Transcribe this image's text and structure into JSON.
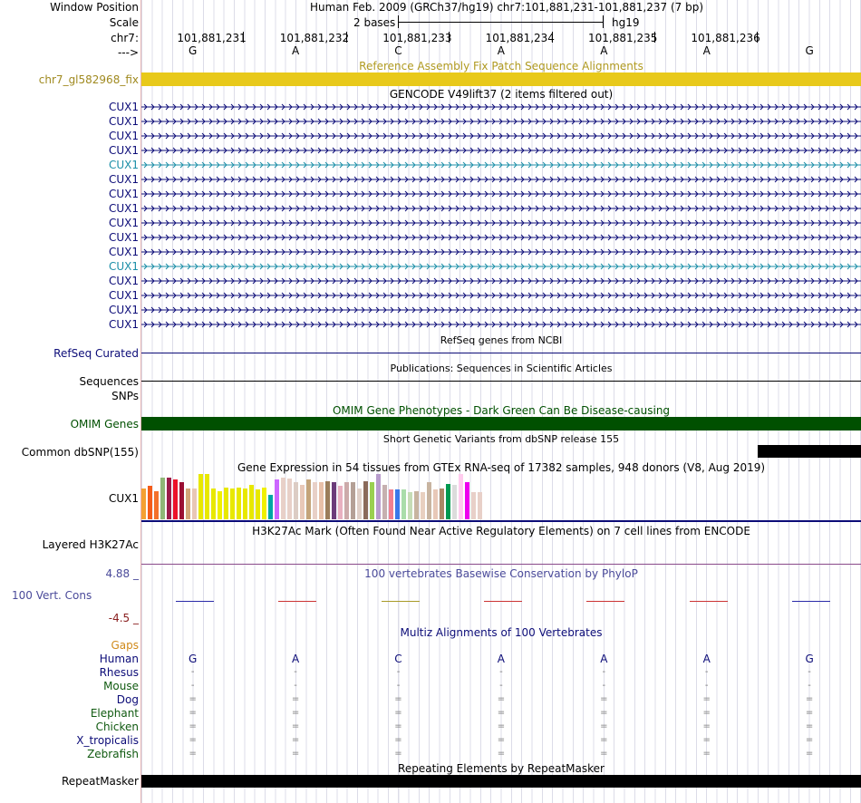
{
  "header": {
    "window_position_label": "Window Position",
    "window_position_text": "Human Feb. 2009 (GRCh37/hg19)   chr7:101,881,231-101,881,237 (7 bp)",
    "scale_label": "Scale",
    "scale_bar_text": "2 bases",
    "scale_assembly": "hg19",
    "chrom_label": "chr7:",
    "positions": [
      "101,881,231",
      "101,881,232",
      "101,881,233",
      "101,881,234",
      "101,881,235",
      "101,881,236"
    ],
    "strand_label": "--->",
    "bases": [
      "G",
      "A",
      "C",
      "A",
      "A",
      "A",
      "G"
    ]
  },
  "fix_track": {
    "title": "Reference Assembly Fix Patch Sequence Alignments",
    "label": "chr7_gl582968_fix",
    "color": "#e8c91a"
  },
  "gencode": {
    "title": "GENCODE V49lift37 (2 items filtered out)",
    "genes": [
      "CUX1",
      "CUX1",
      "CUX1",
      "CUX1",
      "CUX1",
      "CUX1",
      "CUX1",
      "CUX1",
      "CUX1",
      "CUX1",
      "CUX1",
      "CUX1",
      "CUX1",
      "CUX1",
      "CUX1",
      "CUX1"
    ],
    "gene_color": "#0c0c78",
    "alt_color": "#1c8fa8",
    "alt_rows": [
      4,
      11
    ]
  },
  "refseq": {
    "title": "RefSeq genes from NCBI",
    "label": "RefSeq Curated"
  },
  "publications": {
    "title": "Publications: Sequences in Scientific Articles",
    "label": "Sequences"
  },
  "snps_label": "SNPs",
  "omim": {
    "title": "OMIM Gene Phenotypes - Dark Green Can Be Disease-causing",
    "label": "OMIM Genes",
    "color": "#005000"
  },
  "dbsnp": {
    "title": "Short Genetic Variants from dbSNP release 155",
    "label": "Common dbSNP(155)"
  },
  "gtex": {
    "title": "Gene Expression in 54 tissues from GTEx RNA-seq of 17382 samples, 948 donors (V8, Aug 2019)",
    "label": "CUX1",
    "values": [
      0.5,
      0.55,
      0.45,
      0.68,
      0.68,
      0.64,
      0.6,
      0.5,
      0.5,
      0.74,
      0.74,
      0.5,
      0.46,
      0.52,
      0.5,
      0.52,
      0.5,
      0.56,
      0.48,
      0.52,
      0.4,
      0.64,
      0.68,
      0.66,
      0.6,
      0.56,
      0.64,
      0.6,
      0.6,
      0.62,
      0.6,
      0.54,
      0.6,
      0.6,
      0.5,
      0.62,
      0.6,
      0.74,
      0.56,
      0.48,
      0.48,
      0.48,
      0.44,
      0.46,
      0.44,
      0.6,
      0.48,
      0.5,
      0.58,
      0.56,
      0.74,
      0.6,
      0.44,
      0.44
    ],
    "colors": [
      "#f4a032",
      "#f45c1a",
      "#f4702a",
      "#8fb777",
      "#9b1c49",
      "#ec122a",
      "#9a0f33",
      "#d2a679",
      "#e8c7b6",
      "#e8e800",
      "#e8e800",
      "#e8e800",
      "#f0f000",
      "#e8e800",
      "#e8e800",
      "#e8e800",
      "#e8e800",
      "#e8e800",
      "#e8e800",
      "#f0f000",
      "#00a6a6",
      "#cc66ff",
      "#e8d0c8",
      "#e8d0c8",
      "#dcccc4",
      "#e8c8b8",
      "#c4a47a",
      "#e8d0c8",
      "#e8c0a8",
      "#9b7d5a",
      "#6b3b7a",
      "#e8b0c0",
      "#ccaaaa",
      "#b4a096",
      "#e0d0c8",
      "#8a6a5a",
      "#9ad050",
      "#b89ccc",
      "#c6b0b0",
      "#f08090",
      "#3a78e8",
      "#aaddaa",
      "#c6dcb6",
      "#c8b4a0",
      "#e8d0c0",
      "#c8b4a0",
      "#e8c8b8",
      "#aa8866",
      "#009950",
      "#dcdcdc",
      "#ffccee",
      "#ee00ee",
      "#e8d0c8",
      "#e8d0c8"
    ]
  },
  "h3k27ac": {
    "title": "H3K27Ac Mark (Often Found Near Active Regulatory Elements) on 7 cell lines from ENCODE",
    "label": "Layered H3K27Ac"
  },
  "conservation": {
    "title": "100 vertebrates Basewise Conservation by PhyloP",
    "label": "100 Vert. Cons",
    "max_label": "4.88 _",
    "min_label": "-4.5 _",
    "score_colors": [
      "#2a2aa8",
      "#cc3333",
      "#a89a28",
      "#cc3333",
      "#cc3333",
      "#cc3333",
      "#2a2aa8"
    ]
  },
  "multiz": {
    "title": "Multiz Alignments of 100 Vertebrates",
    "gaps_label": "Gaps",
    "species": [
      {
        "name": "Human",
        "color": "#0c0c78",
        "symbols": [
          "G",
          "A",
          "C",
          "A",
          "A",
          "A",
          "G"
        ]
      },
      {
        "name": "Rhesus",
        "color": "#0c0c78",
        "symbols": [
          "-",
          "-",
          "-",
          "-",
          "-",
          "-",
          "-"
        ]
      },
      {
        "name": "Mouse",
        "color": "#105a10",
        "symbols": [
          "-",
          "-",
          "-",
          "-",
          "-",
          "-",
          "-"
        ]
      },
      {
        "name": "Dog",
        "color": "#0c0c78",
        "symbols": [
          "=",
          "=",
          "=",
          "=",
          "=",
          "=",
          "="
        ]
      },
      {
        "name": "Elephant",
        "color": "#105a10",
        "symbols": [
          "=",
          "=",
          "=",
          "=",
          "=",
          "=",
          "="
        ]
      },
      {
        "name": "Chicken",
        "color": "#105a10",
        "symbols": [
          "=",
          "=",
          "=",
          "=",
          "=",
          "=",
          "="
        ]
      },
      {
        "name": "X_tropicalis",
        "color": "#0c0c78",
        "symbols": [
          "=",
          "=",
          "=",
          "=",
          "=",
          "=",
          "="
        ]
      },
      {
        "name": "Zebrafish",
        "color": "#105a10",
        "symbols": [
          "=",
          "=",
          "=",
          "=",
          "=",
          "=",
          "="
        ]
      }
    ]
  },
  "repeatmasker": {
    "title": "Repeating Elements by RepeatMasker",
    "label": "RepeatMasker"
  }
}
